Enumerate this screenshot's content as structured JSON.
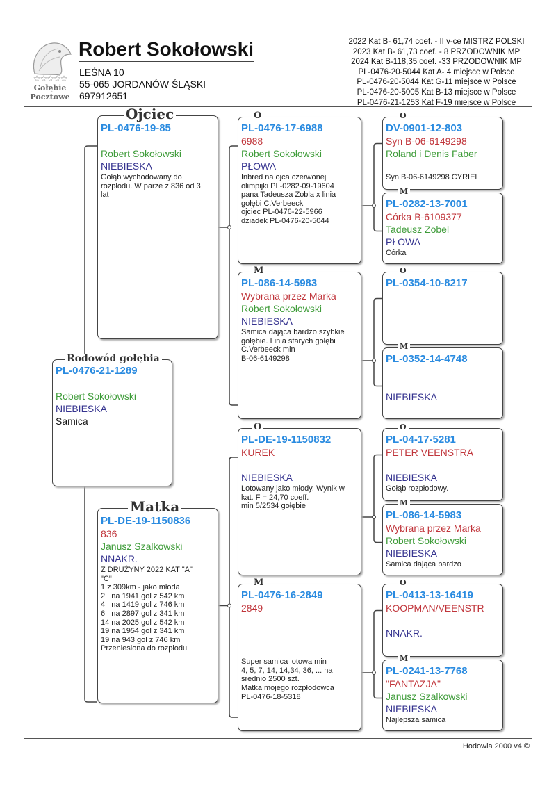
{
  "header": {
    "logo": {
      "text_line1": "Gołębie",
      "text_line2": "Pocztowe",
      "stars": "☆☆☆☆☆"
    },
    "breeder_name": "Robert Sokołowski",
    "address_line1": "LEŚNA 10",
    "address_line2": "55-065 JORDANÓW ŚLĄSKI",
    "phone": "697912651",
    "achievements": [
      "2022 Kat B- 61,74 coef. - II v-ce MISTRZ POLSKI",
      "2023 Kat B- 61,73 coef. - 8 PRZODOWNIK MP",
      "2024 Kat B-118,35 coef. -33 PRZODOWNIK MP",
      "PL-0476-20-5044  Kat A-  4 miejsce w Polsce",
      "PL-0476-20-5044  Kat G-11 miejsce w Polsce",
      "PL-0476-20-5005  Kat B-13 miejsce w Polsce",
      "PL-0476-21-1253  Kat F-19 miejsce w Polsce"
    ]
  },
  "colors": {
    "ring": "#2a8be0",
    "name": "#c0343a",
    "owner": "#3f9c3a",
    "color": "#35338f"
  },
  "subject": {
    "legend": "Rodowód gołębia",
    "ring": "PL-0476-21-1289",
    "name": "",
    "owner": "Robert Sokołowski",
    "color": "NIEBIESKA",
    "sex": "Samica"
  },
  "father": {
    "legend": "Ojciec",
    "ring": "PL-0476-19-85",
    "name": "",
    "owner": "Robert Sokołowski",
    "color": "NIEBIESKA",
    "notes": "Gołąb wychodowany do\nrozpłodu. W parze z 836 od 3\nlat"
  },
  "mother": {
    "legend": "Matka",
    "ring": "PL-DE-19-1150836",
    "name": "836",
    "owner": "Janusz Szalkowski",
    "color": "NNAKR.",
    "notes": "Z DRUŻYNY 2022 KAT \"A\"\n\"C\"\n1 z 309km - jako młoda\n2   na 1941 gol z 542 km\n4   na 1419 gol z 746 km\n6   na 2897 gol z 341 km\n14 na 2025 gol z 542 km\n19 na 1954 gol z 341 km\n19 na 943 gol z 746 km\nPrzeniesiona do rozpłodu"
  },
  "grandparents": [
    {
      "legend": "O",
      "ring": "PL-0476-17-6988",
      "name": "6988",
      "owner": "Robert Sokołowski",
      "color": "PŁOWA",
      "notes": "Inbred na ojca czerwonej\nolimpijki PL-0282-09-19604\npana Tadeusza Zobla x linia\ngołębi C.Verbeeck\nojciec PL-0476-22-5966\ndziadek PL-0476-20-5044"
    },
    {
      "legend": "M",
      "ring": "PL-086-14-5983",
      "name": "Wybrana przez Marka",
      "owner": "Robert Sokołowski",
      "color": "NIEBIESKA",
      "notes": "Samica dająca bardzo szybkie\ngołębie. Linia starych gołębi\nC.Verbeeck min\nB-06-6149298"
    },
    {
      "legend": "O",
      "ring": "PL-DE-19-1150832",
      "name": "KUREK",
      "owner": "",
      "color": "NIEBIESKA",
      "notes": "Lotowany jako młody. Wynik w\nkat. F = 24,70 coeff.\nmin 5/2534 gołębie"
    },
    {
      "legend": "M",
      "ring": "PL-0476-16-2849",
      "name": "2849",
      "owner": "",
      "color": "",
      "notes": "\n\nSuper samica lotowa min\n4, 5, 7, 14, 14,34, 36, ... na\nśrednio 2500 szt.\nMatka mojego rozpłodowca\nPL-0476-18-5318"
    }
  ],
  "great_grandparents": [
    {
      "legend": "O",
      "ring": "DV-0901-12-803",
      "name": "Syn B-06-6149298",
      "owner": "Roland i Denis Faber",
      "color": "",
      "notes": "Syn B-06-6149298 CYRIEL"
    },
    {
      "legend": "M",
      "ring": "PL-0282-13-7001",
      "name": "Córka B-6109377",
      "owner": "Tadeusz Zobel",
      "color": "PŁOWA",
      "notes": "Córka"
    },
    {
      "legend": "O",
      "ring": "PL-0354-10-8217",
      "name": "",
      "owner": "",
      "color": "",
      "notes": ""
    },
    {
      "legend": "M",
      "ring": "PL-0352-14-4748",
      "name": "",
      "owner": "",
      "color": "NIEBIESKA",
      "notes": ""
    },
    {
      "legend": "O",
      "ring": "PL-04-17-5281",
      "name": "PETER VEENSTRA",
      "owner": "",
      "color": "NIEBIESKA",
      "notes": "Gołąb rozpłodowy."
    },
    {
      "legend": "M",
      "ring": "PL-086-14-5983",
      "name": "Wybrana przez Marka",
      "owner": "Robert Sokołowski",
      "color": "NIEBIESKA",
      "notes": "Samica dająca bardzo"
    },
    {
      "legend": "O",
      "ring": "PL-0413-13-16419",
      "name": "KOOPMAN/VEENSTR",
      "owner": "",
      "color": "NNAKR.",
      "notes": ""
    },
    {
      "legend": "M",
      "ring": "PL-0241-13-7768",
      "name": "\"FANTAZJA\"",
      "owner": "Janusz Szalkowski",
      "color": "NIEBIESKA",
      "notes": "Najlepsza samica"
    }
  ],
  "footer": {
    "text": "Hodowla 2000 v4 ©"
  }
}
